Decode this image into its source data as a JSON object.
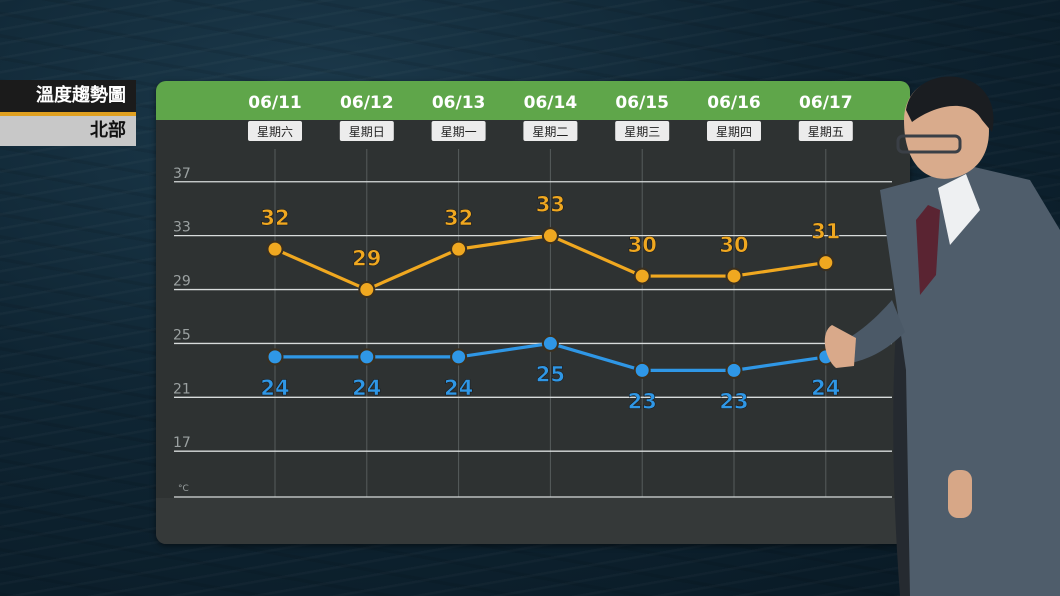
{
  "overlay": {
    "title": "溫度趨勢圖",
    "region": "北部",
    "accent_color": "#e0a020"
  },
  "chart_data": {
    "type": "line",
    "categories": [
      "06/11",
      "06/12",
      "06/13",
      "06/14",
      "06/15",
      "06/16",
      "06/17"
    ],
    "weekdays": [
      "星期六",
      "星期日",
      "星期一",
      "星期二",
      "星期三",
      "星期四",
      "星期五"
    ],
    "series": [
      {
        "values": [
          32,
          29,
          32,
          33,
          30,
          30,
          31
        ],
        "color": "#f0a820"
      },
      {
        "values": [
          24,
          24,
          24,
          25,
          23,
          23,
          24
        ],
        "color": "#2f97e6"
      }
    ],
    "y_ticks": [
      37,
      33,
      29,
      25,
      21,
      17
    ],
    "ylim": [
      13.6,
      37.8
    ],
    "unit": "°C",
    "grid": true
  }
}
